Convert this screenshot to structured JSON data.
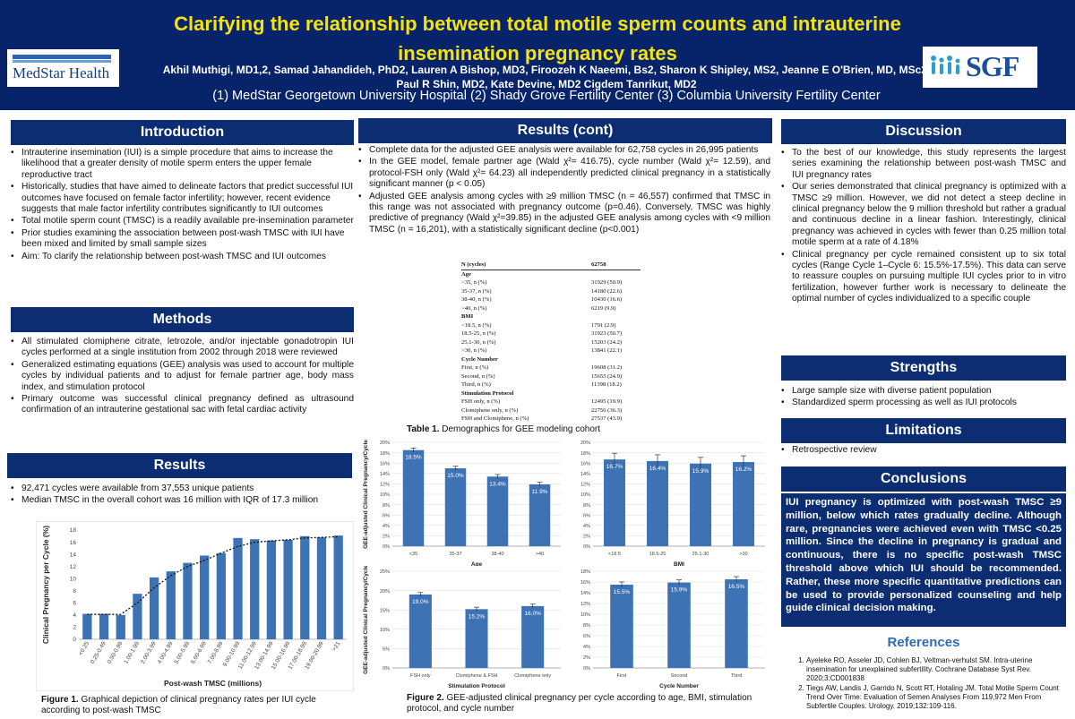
{
  "header": {
    "title": "Clarifying the relationship between total motile sperm counts and intrauterine insemination pregnancy rates",
    "authors_line1": "Akhil Muthigi, MD1,2, Samad Jahandideh, PhD2, Lauren A Bishop, MD3, Firoozeh K Naeemi, Bs2, Sharon K Shipley, MS2, Jeanne E O'Brien, MD, MSc2,",
    "authors_line2": "Paul R Shin, MD2, Kate Devine, MD2 Cigdem Tanrikut, MD2",
    "affiliations": "(1) MedStar Georgetown University Hospital (2) Shady Grove Fertility Center (3) Columbia University Fertility Center",
    "logo_left": "MedStar Health",
    "logo_right": "SGF"
  },
  "introduction": {
    "heading": "Introduction",
    "bullets": [
      "Intrauterine insemination (IUI) is a simple procedure that aims to increase the likelihood that a greater density of motile sperm enters the upper female reproductive tract",
      "Historically, studies that have aimed to delineate factors that predict successful IUI outcomes have focused on female factor infertility; however, recent evidence suggests that male factor infertility contributes significantly to IUI outcomes",
      "Total motile sperm count (TMSC) is a readily available pre-insemination parameter",
      "Prior studies examining the association between post-wash TMSC with IUI have been mixed and limited by small sample sizes",
      "Aim: To clarify the relationship between post-wash TMSC and IUI outcomes"
    ]
  },
  "methods": {
    "heading": "Methods",
    "bullets": [
      "All stimulated clomiphene citrate, letrozole, and/or injectable gonadotropin IUI cycles performed at a single institution from 2002 through 2018 were reviewed",
      "Generalized estimating equations (GEE) analysis was used to account for multiple cycles by individual patients and to adjust for female partner age, body mass index, and stimulation protocol",
      "Primary outcome was successful clinical pregnancy defined as ultrasound confirmation of an intrauterine gestational sac with fetal cardiac activity"
    ]
  },
  "results": {
    "heading": "Results",
    "bullets": [
      "92,471 cycles were available from 37,553 unique patients",
      "Median TMSC in the overall cohort was 16 million with IQR of 17.3 million"
    ],
    "figure1_caption_bold": "Figure 1.",
    "figure1_caption": " Graphical depiction of clinical pregnancy rates per IUI cycle according to post-wash TMSC"
  },
  "results_cont": {
    "heading": "Results (cont)",
    "bullets": [
      "Complete data for the adjusted GEE analysis were available for 62,758 cycles in 26,995 patients",
      "In the GEE model, female partner age (Wald χ²= 416.75), cycle number (Wald χ²= 12.59), and protocol-FSH only (Wald χ²= 64.23) all independently predicted clinical pregnancy in a statistically significant manner (p < 0.05)",
      "Adjusted GEE analysis among cycles with ≥9 million TMSC (n = 46,557) confirmed that TMSC in this range was not associated with pregnancy outcome (p=0.46). Conversely, TMSC was highly predictive of pregnancy (Wald χ²=39.85) in the adjusted GEE analysis among cycles with <9 million TMSC (n = 16,201), with a statistically significant decline (p<0.001)"
    ],
    "table_caption_bold": "Table 1.",
    "table_caption": " Demographics for GEE modeling cohort",
    "figure2_caption_bold": "Figure 2.",
    "figure2_caption": " GEE-adjusted clinical pregnancy per cycle according to age, BMI, stimulation protocol, and cycle number"
  },
  "table1": {
    "header": [
      "N (cycles)",
      "62758"
    ],
    "rows": [
      {
        "label": "Age",
        "value": "",
        "cat": true
      },
      {
        "label": "<35, n (%)",
        "value": "31929 (50.9)"
      },
      {
        "label": "35-37, n (%)",
        "value": "14180 (22.6)"
      },
      {
        "label": "38-40, n (%)",
        "value": "10430 (16.6)"
      },
      {
        "label": ">40, n (%)",
        "value": "6219 (9.9)"
      },
      {
        "label": "BMI",
        "value": "",
        "cat": true
      },
      {
        "label": "<18.5, n (%)",
        "value": "1791 (2.9)"
      },
      {
        "label": "18.5-25, n (%)",
        "value": "31923 (50.7)"
      },
      {
        "label": "25.1-30, n (%)",
        "value": "15203 (24.2)"
      },
      {
        "label": ">30, n (%)",
        "value": "13841 (22.1)"
      },
      {
        "label": "Cycle Number",
        "value": "",
        "cat": true
      },
      {
        "label": "First, n (%)",
        "value": "19608 (31.2)"
      },
      {
        "label": "Second, n (%)",
        "value": "15655 (24.9)"
      },
      {
        "label": "Third, n (%)",
        "value": "11398 (18.2)"
      },
      {
        "label": "Stimulation Protocol",
        "value": "",
        "cat": true
      },
      {
        "label": "FSH only, n (%)",
        "value": "12495 (19.9)"
      },
      {
        "label": "Clomiphene only, n (%)",
        "value": "22756 (36.3)"
      },
      {
        "label": "FSH and Clomiphene, n (%)",
        "value": "27537 (43.9)"
      }
    ]
  },
  "discussion": {
    "heading": "Discussion",
    "bullets": [
      "To the best of our knowledge, this study represents the largest series examining the relationship between post-wash TMSC and IUI pregnancy rates",
      "Our series demonstrated that clinical pregnancy is optimized with a TMSC ≥9 million. However, we did not detect a steep decline in clinical pregnancy below the 9 million threshold but rather a gradual and continuous decline in a linear fashion. Interestingly, clinical pregnancy was achieved in cycles with fewer than 0.25 million total motile sperm at a rate of 4.18%",
      "Clinical pregnancy per cycle remained consistent up to six total cycles (Range Cycle 1–Cycle 6: 15.5%-17.5%). This data can serve to reassure couples on pursuing multiple IUI cycles prior to in vitro fertilization, however further work is necessary to delineate the optimal number of cycles individualized to a specific couple"
    ]
  },
  "strengths": {
    "heading": "Strengths",
    "bullets": [
      "Large sample size with diverse patient population",
      "Standardized sperm processing as well as IUI protocols"
    ]
  },
  "limitations": {
    "heading": "Limitations",
    "bullets": [
      "Retrospective review"
    ]
  },
  "conclusions": {
    "heading": "Conclusions",
    "text": "IUI pregnancy is optimized with post-wash TMSC ≥9 million, below which rates gradually decline. Although rare, pregnancies were achieved even with TMSC <0.25 million. Since the decline in pregnancy is gradual and continuous, there is no specific post-wash TMSC threshold above which IUI should be recommended. Rather, these more specific quantitative predictions can be used to provide personalized counseling and help guide clinical decision making."
  },
  "references": {
    "heading": "References",
    "items": [
      "Ayeleke RO, Asseler JD, Cohlen BJ, Veltman-verhulst SM. Intra-uterine insemination for unexplained subfertility. Cochrane Database Syst Rev. 2020;3:CD001838",
      "Tiegs AW, Landis J, Garrido N, Scott RT, Hotaling JM. Total Motile Sperm Count Trend Over Time: Evaluation of Semen Analyses From 119,972 Men From Subfertile Couples. Urology. 2019;132:109-116."
    ]
  },
  "colors": {
    "header_bg": "#07246a",
    "title": "#f6e20c",
    "section_bg": "#0c2d72",
    "bar": "#3d72b4",
    "accent_text": "#2e6db4"
  },
  "chart_data": [
    {
      "type": "bar",
      "id": "fig1",
      "ylabel": "Clinical Pregnancy per Cycle (%)",
      "xlabel": "Post-wash TMSC (millions)",
      "ylim": [
        0,
        18
      ],
      "yticks": [
        0,
        2,
        4,
        6,
        8,
        10,
        12,
        14,
        16,
        18
      ],
      "categories": [
        "<0.25",
        "0.25-0.49",
        "0.50-0.99",
        "1.00-1.99",
        "2.00-3.99",
        "4.00-4.99",
        "5.00-5.99",
        "6.00-6.99",
        "7.00-8.99",
        "9.00-10.99",
        "11.00-12.99",
        "13.00-14.99",
        "15.00-16.99",
        "17.00-18.99",
        "19.00-20.99",
        ">21"
      ],
      "values": [
        4.2,
        4.2,
        4.0,
        7.5,
        10.2,
        11.2,
        12.6,
        13.8,
        14.2,
        16.7,
        16.5,
        16.3,
        16.4,
        17.0,
        16.8,
        17.1
      ],
      "trend": [
        4.1,
        4.1,
        4.1,
        6.0,
        8.5,
        10.5,
        12.0,
        13.0,
        14.2,
        15.3,
        16.0,
        16.2,
        16.4,
        16.7,
        16.8,
        16.9
      ],
      "grid": false
    },
    {
      "type": "bar",
      "id": "fig2a",
      "ylabel": "GEE-adjusted Clinical Pregnancy/Cycle",
      "xlabel": "Age",
      "ylim": [
        0,
        20
      ],
      "yticks": [
        0,
        2,
        4,
        6,
        8,
        10,
        12,
        14,
        16,
        18,
        20
      ],
      "categories": [
        "<35",
        "35-37",
        "38-40",
        ">40"
      ],
      "values": [
        18.5,
        15.0,
        13.4,
        11.9
      ],
      "labels": [
        "18.5%",
        "15.0%",
        "13.4%",
        "11.9%"
      ],
      "grid": true
    },
    {
      "type": "bar",
      "id": "fig2b",
      "ylabel": "",
      "xlabel": "BMI",
      "ylim": [
        0,
        20
      ],
      "yticks": [
        0,
        2,
        4,
        6,
        8,
        10,
        12,
        14,
        16,
        18,
        20
      ],
      "categories": [
        "<18.5",
        "18.5-25",
        "25.1-30",
        ">30"
      ],
      "values": [
        16.7,
        16.4,
        15.9,
        16.2
      ],
      "labels": [
        "16.7%",
        "16.4%",
        "15.9%",
        "16.2%"
      ],
      "grid": true
    },
    {
      "type": "bar",
      "id": "fig2c",
      "ylabel": "GEE-adjusted Clinical Pregnancy/Cycle",
      "xlabel": "Stimulation Protocol",
      "ylim": [
        0,
        25
      ],
      "yticks": [
        0,
        5,
        10,
        15,
        20,
        25
      ],
      "categories": [
        "FSH only",
        "Clomiphene & FSH",
        "Clomiphene only"
      ],
      "values": [
        19.0,
        15.2,
        16.0
      ],
      "labels": [
        "19.0%",
        "15.2%",
        "16.0%"
      ],
      "grid": true
    },
    {
      "type": "bar",
      "id": "fig2d",
      "ylabel": "",
      "xlabel": "Cycle Number",
      "ylim": [
        0,
        18
      ],
      "yticks": [
        0,
        2,
        4,
        6,
        8,
        10,
        12,
        14,
        16,
        18
      ],
      "categories": [
        "First",
        "Second",
        "Third"
      ],
      "values": [
        15.5,
        15.9,
        16.5
      ],
      "labels": [
        "15.5%",
        "15.9%",
        "16.5%"
      ],
      "grid": true
    }
  ]
}
